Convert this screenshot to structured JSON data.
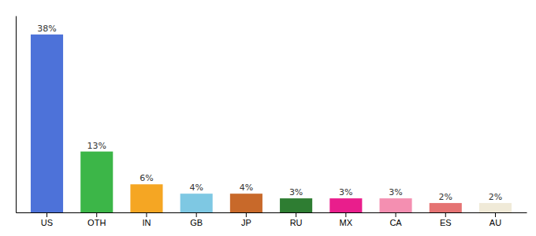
{
  "chart_data": {
    "type": "bar",
    "categories": [
      "US",
      "OTH",
      "IN",
      "GB",
      "JP",
      "RU",
      "MX",
      "CA",
      "ES",
      "AU"
    ],
    "values": [
      38,
      13,
      6,
      4,
      4,
      3,
      3,
      3,
      2,
      2
    ],
    "value_labels": [
      "38%",
      "13%",
      "6%",
      "4%",
      "4%",
      "3%",
      "3%",
      "3%",
      "2%",
      "2%"
    ],
    "colors": [
      "#4d72d9",
      "#3cb648",
      "#f5a623",
      "#7ec8e3",
      "#c8692a",
      "#2e7d32",
      "#e91e8c",
      "#f48fb1",
      "#e57373",
      "#f0ead8"
    ],
    "ylim": [
      0,
      42
    ],
    "data_labels": true,
    "tick_labels": "x",
    "grid": false
  }
}
